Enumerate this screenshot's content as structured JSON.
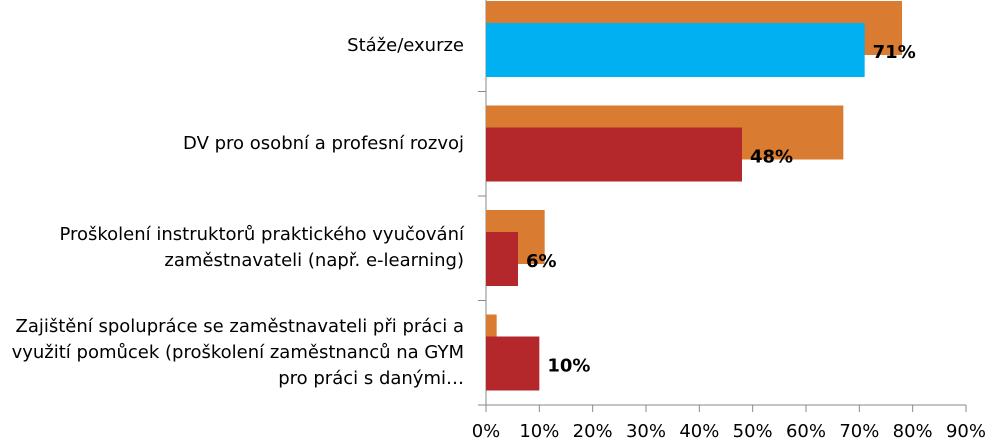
{
  "chart_data": {
    "type": "barh",
    "categories": [
      "Stáže/exurze",
      "DV pro osobní a profesní rozvoj",
      "Proškolení instruktorů praktického vyučování zaměstnavateli (např. e-learning)",
      "Zajištění spolupráce se zaměstnavateli při práci a využití pomůcek (proškolení zaměstnanců na GYM pro práci s danými…"
    ],
    "series": [
      {
        "color": "#d97b30",
        "values": [
          78,
          67,
          11,
          2
        ]
      },
      {
        "colors": [
          "#00b0f0",
          "#b4282b",
          "#b4282b",
          "#b4282b"
        ],
        "values": [
          71,
          48,
          6,
          10
        ],
        "value_labels": [
          "71%",
          "48%",
          "6%",
          "10%"
        ]
      }
    ],
    "xlim": [
      0,
      90
    ],
    "xticks": [
      {
        "value": 0,
        "label": "0%"
      },
      {
        "value": 10,
        "label": "10%"
      },
      {
        "value": 20,
        "label": "20%"
      },
      {
        "value": 30,
        "label": "30%"
      },
      {
        "value": 40,
        "label": "40%"
      },
      {
        "value": 50,
        "label": "50%"
      },
      {
        "value": 60,
        "label": "60%"
      },
      {
        "value": 70,
        "label": "70%"
      },
      {
        "value": 80,
        "label": "80%"
      },
      {
        "value": 90,
        "label": "90%"
      }
    ]
  }
}
